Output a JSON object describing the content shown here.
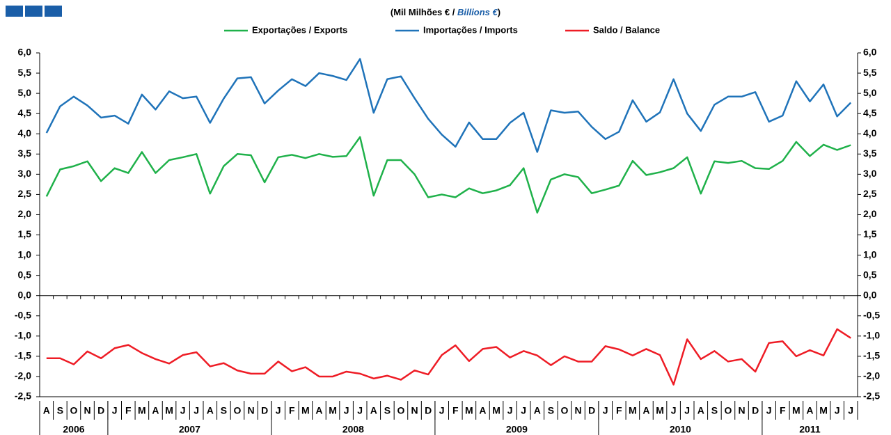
{
  "chart_data": {
    "type": "line",
    "title_parts": [
      "(Mil Milhões € / ",
      "Billions €",
      ")"
    ],
    "categories": [
      "A",
      "S",
      "O",
      "N",
      "D",
      "J",
      "F",
      "M",
      "A",
      "M",
      "J",
      "J",
      "A",
      "S",
      "O",
      "N",
      "D",
      "J",
      "F",
      "M",
      "A",
      "M",
      "J",
      "J",
      "A",
      "S",
      "O",
      "N",
      "D",
      "J",
      "F",
      "M",
      "A",
      "M",
      "J",
      "J",
      "A",
      "S",
      "O",
      "N",
      "D",
      "J",
      "F",
      "M",
      "A",
      "M",
      "J",
      "J",
      "A",
      "S",
      "O",
      "N",
      "D",
      "J",
      "F",
      "M",
      "A",
      "M",
      "J",
      "J"
    ],
    "years": [
      "2006",
      "2007",
      "2008",
      "2009",
      "2010",
      "2011"
    ],
    "series": [
      {
        "name": "Exportações / Exports",
        "color": "#1fb14a",
        "values": [
          2.45,
          3.12,
          3.2,
          3.32,
          2.83,
          3.15,
          3.03,
          3.55,
          3.03,
          3.35,
          3.42,
          3.5,
          2.52,
          3.2,
          3.5,
          3.47,
          2.8,
          3.42,
          3.48,
          3.4,
          3.5,
          3.43,
          3.45,
          3.92,
          2.47,
          3.35,
          3.35,
          3.0,
          2.43,
          2.5,
          2.43,
          2.65,
          2.53,
          2.6,
          2.73,
          3.15,
          2.05,
          2.87,
          3.0,
          2.93,
          2.53,
          2.62,
          2.72,
          3.33,
          2.98,
          3.05,
          3.15,
          3.42,
          2.52,
          3.32,
          3.28,
          3.33,
          3.15,
          3.13,
          3.33,
          3.8,
          3.45,
          3.73,
          3.6,
          3.72
        ]
      },
      {
        "name": "Importações / Imports",
        "color": "#1f73b9",
        "values": [
          4.02,
          4.68,
          4.92,
          4.7,
          4.4,
          4.45,
          4.25,
          4.97,
          4.6,
          5.05,
          4.88,
          4.92,
          4.27,
          4.87,
          5.37,
          5.4,
          4.75,
          5.07,
          5.35,
          5.18,
          5.5,
          5.43,
          5.33,
          5.85,
          4.52,
          5.35,
          5.42,
          4.88,
          4.37,
          3.98,
          3.68,
          4.28,
          3.87,
          3.87,
          4.27,
          4.52,
          3.55,
          4.58,
          4.52,
          4.55,
          4.17,
          3.87,
          4.05,
          4.83,
          4.3,
          4.53,
          5.35,
          4.5,
          4.07,
          4.72,
          4.92,
          4.92,
          5.03,
          4.3,
          4.45,
          5.3,
          4.8,
          5.22,
          4.43,
          4.77
        ]
      },
      {
        "name": "Saldo / Balance",
        "color": "#ee1c25",
        "values": [
          -1.55,
          -1.55,
          -1.7,
          -1.38,
          -1.55,
          -1.3,
          -1.22,
          -1.42,
          -1.57,
          -1.68,
          -1.47,
          -1.4,
          -1.75,
          -1.67,
          -1.85,
          -1.93,
          -1.93,
          -1.63,
          -1.87,
          -1.77,
          -2.0,
          -2.0,
          -1.88,
          -1.93,
          -2.05,
          -1.98,
          -2.08,
          -1.85,
          -1.95,
          -1.47,
          -1.23,
          -1.62,
          -1.32,
          -1.27,
          -1.53,
          -1.37,
          -1.48,
          -1.72,
          -1.5,
          -1.63,
          -1.63,
          -1.25,
          -1.33,
          -1.48,
          -1.32,
          -1.47,
          -2.2,
          -1.08,
          -1.57,
          -1.37,
          -1.63,
          -1.57,
          -1.88,
          -1.17,
          -1.13,
          -1.5,
          -1.35,
          -1.48,
          -0.83,
          -1.05
        ]
      }
    ],
    "ylim": [
      -2.5,
      6.0
    ],
    "yticks": [
      {
        "value": 6.0,
        "label": "6,0"
      },
      {
        "value": 5.5,
        "label": "5,5"
      },
      {
        "value": 5.0,
        "label": "5,0"
      },
      {
        "value": 4.5,
        "label": "4,5"
      },
      {
        "value": 4.0,
        "label": "4,0"
      },
      {
        "value": 3.5,
        "label": "3,5"
      },
      {
        "value": 3.0,
        "label": "3,0"
      },
      {
        "value": 2.5,
        "label": "2,5"
      },
      {
        "value": 2.0,
        "label": "2,0"
      },
      {
        "value": 1.5,
        "label": "1,5"
      },
      {
        "value": 1.0,
        "label": "1,0"
      },
      {
        "value": 0.5,
        "label": "0,5"
      },
      {
        "value": 0.0,
        "label": "0,0"
      },
      {
        "value": -0.5,
        "label": "-0,5"
      },
      {
        "value": -1.0,
        "label": "-1,0"
      },
      {
        "value": -1.5,
        "label": "-1,5"
      },
      {
        "value": -2.0,
        "label": "-2,0"
      },
      {
        "value": -2.5,
        "label": "-2,5"
      }
    ],
    "grid": false
  }
}
